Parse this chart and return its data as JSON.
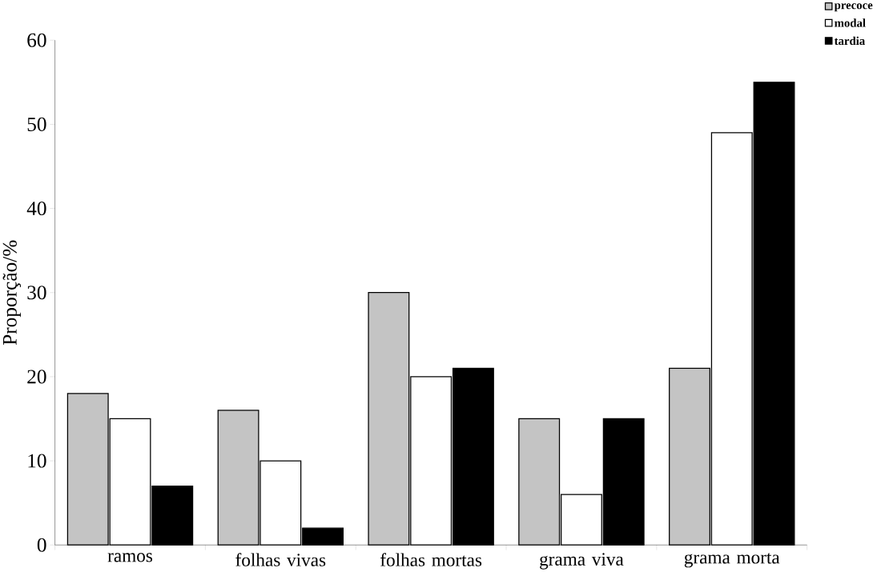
{
  "chart_data": {
    "type": "bar",
    "ylabel": "Proporção/%",
    "categories": [
      "ramos",
      "folhas vivas",
      "folhas mortas",
      "grama viva",
      "grama morta"
    ],
    "series": [
      {
        "name": "precoce",
        "color": "#c4c4c4",
        "values": [
          18,
          16,
          30,
          15,
          21
        ]
      },
      {
        "name": "modal",
        "color": "#ffffff",
        "values": [
          15,
          10,
          20,
          6,
          49
        ]
      },
      {
        "name": "tardia",
        "color": "#000000",
        "values": [
          7,
          2,
          21,
          15,
          55
        ]
      }
    ],
    "ylim": [
      0,
      60
    ],
    "yticks": [
      0,
      10,
      20,
      30,
      40,
      50,
      60
    ],
    "legend": "top right",
    "grid": false
  }
}
